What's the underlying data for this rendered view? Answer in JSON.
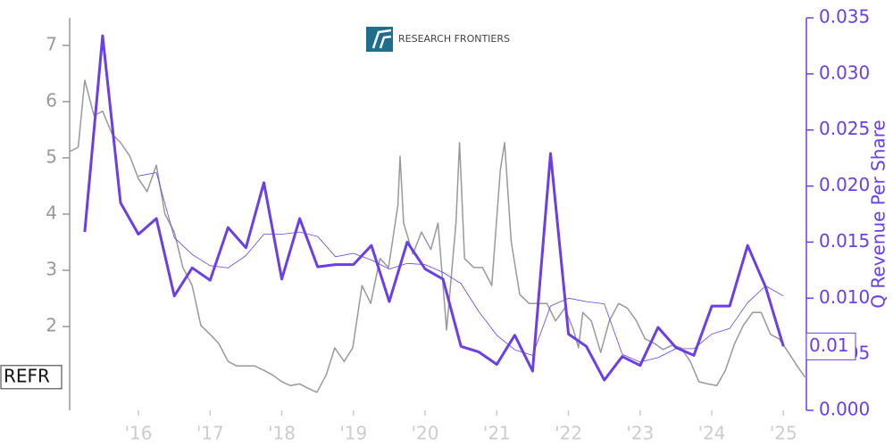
{
  "chart_data": {
    "type": "line",
    "logo_text": "RESEARCH FRONTIERS",
    "y2label": "Q Revenue Per Share",
    "xlim": [
      2015.04,
      2025.32
    ],
    "xticks": [
      {
        "value": 2016,
        "label": "'16"
      },
      {
        "value": 2017,
        "label": "'17"
      },
      {
        "value": 2018,
        "label": "'18"
      },
      {
        "value": 2019,
        "label": "'19"
      },
      {
        "value": 2020,
        "label": "'20"
      },
      {
        "value": 2021,
        "label": "'21"
      },
      {
        "value": 2022,
        "label": "'22"
      },
      {
        "value": 2023,
        "label": "'23"
      },
      {
        "value": 2024,
        "label": "'24"
      },
      {
        "value": 2025,
        "label": "'25"
      }
    ],
    "ylim": [
      0.51,
      7.49
    ],
    "yticks": [
      2,
      3,
      4,
      5,
      6,
      7
    ],
    "y2lim": [
      0,
      0.035
    ],
    "y2ticks": [
      {
        "value": 0,
        "label": "0.000"
      },
      {
        "value": 0.005,
        "label": "0.005"
      },
      {
        "value": 0.01,
        "label": "0.010"
      },
      {
        "value": 0.015,
        "label": "0.015"
      },
      {
        "value": 0.02,
        "label": "0.020"
      },
      {
        "value": 0.025,
        "label": "0.025"
      },
      {
        "value": 0.03,
        "label": "0.030"
      },
      {
        "value": 0.035,
        "label": "0.035"
      }
    ],
    "series": [
      {
        "name": "REFR",
        "color": "#999999",
        "width": 1.5,
        "x": [
          2015.04,
          2015.16,
          2015.25,
          2015.38,
          2015.5,
          2015.63,
          2015.75,
          2015.88,
          2016.0,
          2016.12,
          2016.25,
          2016.37,
          2016.5,
          2016.62,
          2016.75,
          2016.87,
          2017.0,
          2017.12,
          2017.25,
          2017.37,
          2017.5,
          2017.62,
          2017.75,
          2017.87,
          2018.0,
          2018.12,
          2018.25,
          2018.37,
          2018.49,
          2018.62,
          2018.74,
          2018.87,
          2018.99,
          2019.12,
          2019.24,
          2019.37,
          2019.49,
          2019.62,
          2019.65,
          2019.7,
          2019.83,
          2019.95,
          2020.08,
          2020.18,
          2020.3,
          2020.43,
          2020.48,
          2020.55,
          2020.68,
          2020.8,
          2020.93,
          2021.05,
          2021.11,
          2021.2,
          2021.32,
          2021.45,
          2021.57,
          2021.7,
          2021.82,
          2021.95,
          2022.07,
          2022.14,
          2022.2,
          2022.32,
          2022.45,
          2022.57,
          2022.7,
          2022.82,
          2022.95,
          2023.07,
          2023.2,
          2023.32,
          2023.45,
          2023.57,
          2023.7,
          2023.82,
          2023.94,
          2024.07,
          2024.19,
          2024.32,
          2024.44,
          2024.57,
          2024.69,
          2024.82,
          2024.94,
          2025.07,
          2025.19,
          2025.3
        ],
        "values": [
          5.11,
          5.19,
          6.38,
          5.75,
          5.83,
          5.43,
          5.27,
          5.03,
          4.63,
          4.4,
          4.87,
          4.0,
          3.68,
          3.05,
          2.73,
          2.02,
          1.86,
          1.7,
          1.38,
          1.3,
          1.3,
          1.3,
          1.22,
          1.14,
          1.02,
          0.95,
          0.98,
          0.9,
          0.83,
          1.14,
          1.62,
          1.38,
          1.62,
          2.73,
          2.41,
          3.21,
          3.05,
          4.16,
          5.03,
          3.84,
          3.29,
          3.68,
          3.37,
          3.84,
          1.94,
          3.84,
          5.27,
          3.21,
          3.05,
          3.05,
          2.73,
          4.79,
          5.27,
          3.52,
          2.57,
          2.41,
          2.41,
          2.41,
          2.1,
          2.33,
          1.94,
          1.62,
          2.25,
          2.1,
          1.54,
          2.1,
          2.41,
          2.33,
          2.1,
          1.78,
          1.7,
          1.59,
          1.67,
          1.62,
          1.38,
          1.02,
          0.98,
          0.95,
          1.22,
          1.7,
          2.02,
          2.25,
          2.25,
          1.86,
          1.78,
          1.54,
          1.3,
          1.1
        ]
      },
      {
        "axis": "y2",
        "color": "#6a3ee8",
        "width": 3,
        "last_label": "0.01",
        "x": [
          2015.25,
          2015.5,
          2015.75,
          2016.0,
          2016.25,
          2016.5,
          2016.75,
          2017.0,
          2017.25,
          2017.5,
          2017.75,
          2018.0,
          2018.25,
          2018.5,
          2018.75,
          2019.0,
          2019.25,
          2019.5,
          2019.75,
          2020.0,
          2020.25,
          2020.5,
          2020.75,
          2021.0,
          2021.25,
          2021.5,
          2021.75,
          2022.0,
          2022.25,
          2022.5,
          2022.75,
          2023.0,
          2023.25,
          2023.5,
          2023.75,
          2024.0,
          2024.25,
          2024.5,
          2024.75,
          2025.0
        ],
        "values": [
          0.0159,
          0.0334,
          0.0185,
          0.0157,
          0.0171,
          0.0102,
          0.0127,
          0.0116,
          0.0163,
          0.0145,
          0.0203,
          0.0117,
          0.0171,
          0.0128,
          0.013,
          0.013,
          0.0147,
          0.0097,
          0.015,
          0.0126,
          0.0117,
          0.0057,
          0.0052,
          0.0041,
          0.0067,
          0.0035,
          0.0229,
          0.0068,
          0.0057,
          0.0027,
          0.0048,
          0.004,
          0.0074,
          0.0056,
          0.0049,
          0.0093,
          0.0093,
          0.0147,
          0.011,
          0.0057
        ]
      },
      {
        "axis": "y2",
        "color": "#6a3ee8",
        "width": 0.8,
        "x": [
          2015.25,
          2015.5,
          2015.75,
          2016.0,
          2016.25,
          2016.5,
          2016.75,
          2017.0,
          2017.25,
          2017.5,
          2017.75,
          2018.0,
          2018.25,
          2018.5,
          2018.75,
          2019.0,
          2019.25,
          2019.5,
          2019.75,
          2020.0,
          2020.25,
          2020.5,
          2020.75,
          2021.0,
          2021.25,
          2021.5,
          2021.75,
          2022.0,
          2022.25,
          2022.5,
          2022.75,
          2023.0,
          2023.25,
          2023.5,
          2023.75,
          2024.0,
          2024.25,
          2024.5,
          2024.75,
          2025.0
        ],
        "values": [
          null,
          null,
          null,
          0.0209,
          0.0212,
          0.0154,
          0.0139,
          0.0129,
          0.0127,
          0.0138,
          0.0157,
          0.0157,
          0.0159,
          0.0155,
          0.0137,
          0.014,
          0.0134,
          0.0126,
          0.0131,
          0.013,
          0.0123,
          0.0113,
          0.0088,
          0.0067,
          0.0054,
          0.0049,
          0.0093,
          0.01,
          0.0097,
          0.0095,
          0.005,
          0.0043,
          0.0047,
          0.0055,
          0.0055,
          0.0068,
          0.0073,
          0.0096,
          0.0111,
          0.0102
        ]
      }
    ]
  }
}
